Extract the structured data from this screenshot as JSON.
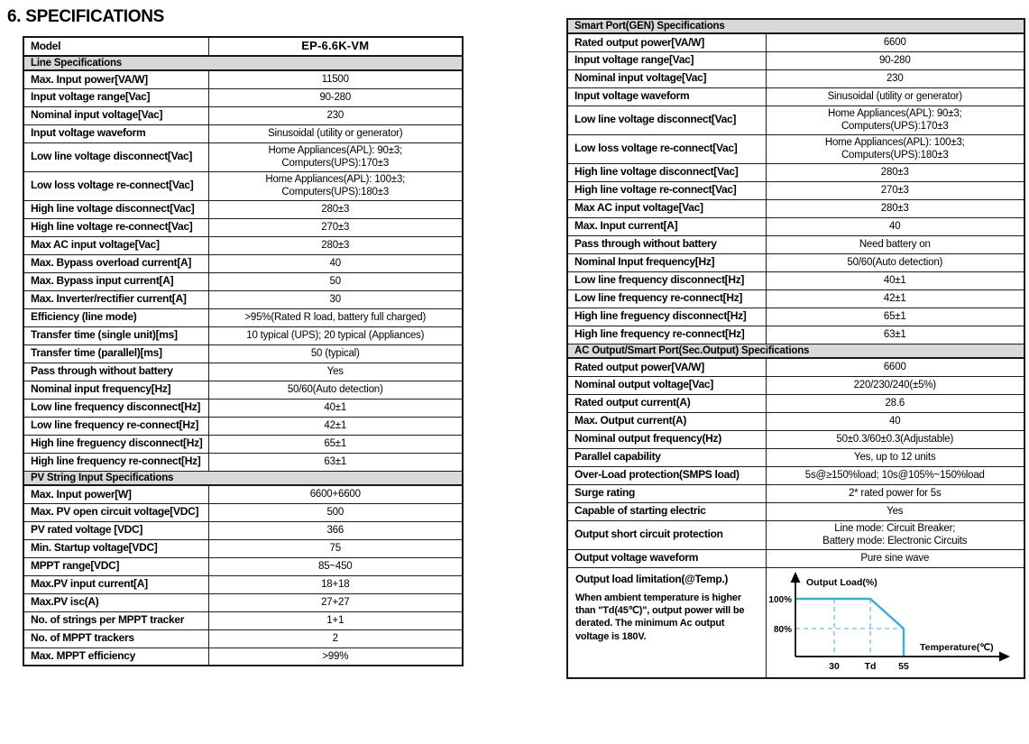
{
  "page_title": "6. SPECIFICATIONS",
  "left_table": {
    "rows": [
      {
        "type": "model",
        "label": "Model",
        "value": "EP-6.6K-VM"
      },
      {
        "type": "section",
        "label": "Line Specifications"
      },
      {
        "label": "Max. Input power[VA/W]",
        "value": "11500"
      },
      {
        "label": "Input voltage range[Vac]",
        "value": "90-280"
      },
      {
        "label": "Nominal input voltage[Vac]",
        "value": "230"
      },
      {
        "label": "Input voltage waveform",
        "value": "Sinusoidal (utility or generator)"
      },
      {
        "label": "Low line voltage disconnect[Vac]",
        "value": "Home Appliances(APL): 90±3;\nComputers(UPS):170±3"
      },
      {
        "label": "Low loss voltage re-connect[Vac]",
        "value": "Home Appliances(APL): 100±3;\nComputers(UPS):180±3"
      },
      {
        "label": "High line voltage disconnect[Vac]",
        "value": "280±3"
      },
      {
        "label": "High line voltage re-connect[Vac]",
        "value": "270±3"
      },
      {
        "label": "Max AC input voltage[Vac]",
        "value": "280±3"
      },
      {
        "label": "Max. Bypass overload current[A]",
        "value": "40"
      },
      {
        "label": "Max. Bypass input current[A]",
        "value": "50"
      },
      {
        "label": "Max. Inverter/rectifier current[A]",
        "value": "30"
      },
      {
        "label": "Efficiency (line mode)",
        "value": ">95%(Rated R load, battery full charged)"
      },
      {
        "label": "Transfer time (single unit)[ms]",
        "value": "10 typical (UPS); 20 typical (Appliances)"
      },
      {
        "label": "Transfer time (parallel)[ms]",
        "value": "50 (typical)"
      },
      {
        "label": "Pass through without battery",
        "value": "Yes"
      },
      {
        "label": "Nominal input frequency[Hz]",
        "value": "50/60(Auto detection)"
      },
      {
        "label": "Low line frequency disconnect[Hz]",
        "value": "40±1"
      },
      {
        "label": "Low line frequency re-connect[Hz]",
        "value": "42±1"
      },
      {
        "label": "High line freguency disconnect[Hz]",
        "value": "65±1"
      },
      {
        "label": "High line frequency re-connect[Hz]",
        "value": "63±1"
      },
      {
        "type": "section",
        "label": "PV String Input Specifications"
      },
      {
        "label": "Max. Input power[W]",
        "value": "6600+6600"
      },
      {
        "label": "Max. PV open circuit voltage[VDC]",
        "value": "500"
      },
      {
        "label": "PV rated voltage [VDC]",
        "value": "366"
      },
      {
        "label": "Min. Startup voltage[VDC]",
        "value": "75"
      },
      {
        "label": "MPPT range[VDC]",
        "value": "85~450"
      },
      {
        "label": "Max.PV input current[A]",
        "value": "18+18"
      },
      {
        "label": "Max.PV isc(A)",
        "value": "27+27"
      },
      {
        "label": "No. of strings per MPPT tracker",
        "value": "1+1"
      },
      {
        "label": "No. of MPPT trackers",
        "value": "2"
      },
      {
        "label": "Max. MPPT efficiency",
        "value": ">99%"
      }
    ]
  },
  "right_table": {
    "rows": [
      {
        "type": "section",
        "label": "Smart Port(GEN) Specifications"
      },
      {
        "label": "Rated output power[VA/W]",
        "value": "6600"
      },
      {
        "label": "Input voltage range[Vac]",
        "value": "90-280"
      },
      {
        "label": "Nominal input voltage[Vac]",
        "value": "230"
      },
      {
        "label": "Input voltage waveform",
        "value": "Sinusoidal (utility or generator)"
      },
      {
        "label": "Low line voltage disconnect[Vac]",
        "value": "Home Appliances(APL): 90±3;\nComputers(UPS):170±3"
      },
      {
        "label": "Low loss voltage re-connect[Vac]",
        "value": "Home Appliances(APL): 100±3;\nComputers(UPS):180±3"
      },
      {
        "label": "High line voltage disconnect[Vac]",
        "value": "280±3"
      },
      {
        "label": "High line voltage re-connect[Vac]",
        "value": "270±3"
      },
      {
        "label": "Max AC input voltage[Vac]",
        "value": "280±3"
      },
      {
        "label": "Max. Input current[A]",
        "value": "40"
      },
      {
        "label": "Pass through without battery",
        "value": "Need battery on"
      },
      {
        "label": "Nominal Input frequency[Hz]",
        "value": "50/60(Auto detection)"
      },
      {
        "label": "Low line frequency disconnect[Hz]",
        "value": "40±1"
      },
      {
        "label": "Low line frequency re-connect[Hz]",
        "value": "42±1"
      },
      {
        "label": "High line freguency disconnect[Hz]",
        "value": "65±1"
      },
      {
        "label": "High line frequency re-connect[Hz]",
        "value": "63±1"
      },
      {
        "type": "section",
        "label": "AC Output/Smart Port(Sec.Output) Specifications"
      },
      {
        "label": "Rated output power[VA/W]",
        "value": "6600"
      },
      {
        "label": "Nominal output voltage[Vac]",
        "value": "220/230/240(±5%)"
      },
      {
        "label": "Rated output current(A)",
        "value": "28.6"
      },
      {
        "label": "Max. Output current(A)",
        "value": "40"
      },
      {
        "label": "Nominal output frequency(Hz)",
        "value": "50±0.3/60±0.3(Adjustable)"
      },
      {
        "label": "Parallel capability",
        "value": "Yes, up to 12 units"
      },
      {
        "label": "Over-Load protection(SMPS load)",
        "value": "5s@≥150%load; 10s@105%~150%load"
      },
      {
        "label": "Surge rating",
        "value": "2* rated power for 5s"
      },
      {
        "label": "Capable of starting electric",
        "value": "Yes"
      },
      {
        "label": "Output short circuit protection",
        "value": "Line mode: Circuit Breaker;\nBattery mode: Electronic Circuits"
      },
      {
        "label": "Output voltage waveform",
        "value": "Pure sine wave"
      }
    ],
    "chart_row": {
      "label": "Output load limitation(@Temp.)",
      "note": "When ambient temperature is higher than \"Td(45℃)\", output power will be derated. The minimum Ac output voltage is 180V."
    }
  },
  "chart_data": {
    "type": "line",
    "title": "Output load limitation(@Temp.)",
    "xlabel": "Temperature(℃)",
    "ylabel": "Output Load(%)",
    "x_ticks": [
      "30",
      "Td",
      "55"
    ],
    "y_ticks": [
      "100%",
      "80%"
    ],
    "series": [
      {
        "name": "output-load-derating",
        "x": [
          "0",
          "Td",
          "55",
          "55"
        ],
        "y": [
          100,
          100,
          80,
          0
        ]
      }
    ],
    "annotations": {
      "Td": "45℃"
    },
    "line_color": "#3fa9dc",
    "dash_color": "#8cc9e9",
    "axis_color": "#000000"
  }
}
